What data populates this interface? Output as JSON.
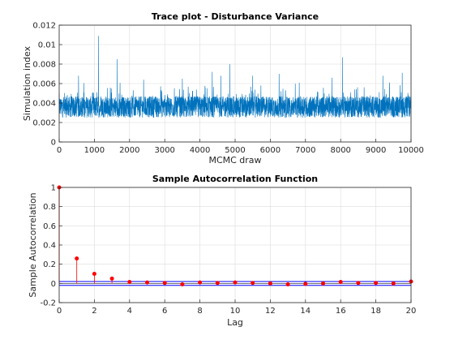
{
  "chart_data": [
    {
      "type": "line",
      "title": "Trace plot - Disturbance Variance",
      "xlabel": "MCMC draw",
      "ylabel": "Simulation index",
      "xlim": [
        0,
        10000
      ],
      "ylim": [
        0,
        0.012
      ],
      "xticks": [
        "0",
        "1000",
        "2000",
        "3000",
        "4000",
        "5000",
        "6000",
        "7000",
        "8000",
        "9000",
        "10000"
      ],
      "yticks": [
        "0",
        "0.002",
        "0.004",
        "0.006",
        "0.008",
        "0.01",
        "0.012"
      ],
      "grid": true,
      "series": [
        {
          "color": "#0072bd",
          "n_draws": 10000,
          "typical_mean": 0.0036,
          "typical_range": [
            0.002,
            0.0065
          ],
          "spikes": [
            {
              "x": 1120,
              "y": 0.0109
            },
            {
              "x": 1650,
              "y": 0.0085
            },
            {
              "x": 550,
              "y": 0.0068
            },
            {
              "x": 2400,
              "y": 0.0064
            },
            {
              "x": 3500,
              "y": 0.0065
            },
            {
              "x": 4350,
              "y": 0.0072
            },
            {
              "x": 4600,
              "y": 0.0068
            },
            {
              "x": 4850,
              "y": 0.008
            },
            {
              "x": 5500,
              "y": 0.0068
            },
            {
              "x": 6250,
              "y": 0.007
            },
            {
              "x": 7750,
              "y": 0.0066
            },
            {
              "x": 8050,
              "y": 0.0087
            },
            {
              "x": 9200,
              "y": 0.0068
            },
            {
              "x": 9750,
              "y": 0.0071
            }
          ]
        }
      ]
    },
    {
      "type": "stem",
      "title": "Sample Autocorrelation Function",
      "xlabel": "Lag",
      "ylabel": "Sample Autocorrelation",
      "xlim": [
        0,
        20
      ],
      "ylim": [
        -0.2,
        1
      ],
      "xticks": [
        "0",
        "2",
        "4",
        "6",
        "8",
        "10",
        "12",
        "14",
        "16",
        "18",
        "20"
      ],
      "yticks": [
        "-0.2",
        "0",
        "0.2",
        "0.4",
        "0.6",
        "0.8",
        "1"
      ],
      "grid": true,
      "lags": [
        0,
        1,
        2,
        3,
        4,
        5,
        6,
        7,
        8,
        9,
        10,
        11,
        12,
        13,
        14,
        15,
        16,
        17,
        18,
        19,
        20
      ],
      "values": [
        1.0,
        0.26,
        0.1,
        0.05,
        0.015,
        0.01,
        0.005,
        -0.01,
        0.01,
        0.005,
        0.01,
        0.005,
        0.0,
        -0.01,
        -0.005,
        0.0,
        0.015,
        0.005,
        0.005,
        0.0,
        0.02
      ],
      "confidence_bounds": [
        0.02,
        -0.02
      ],
      "stem_color": "#ff0000",
      "bound_color": "#0000ff"
    }
  ]
}
